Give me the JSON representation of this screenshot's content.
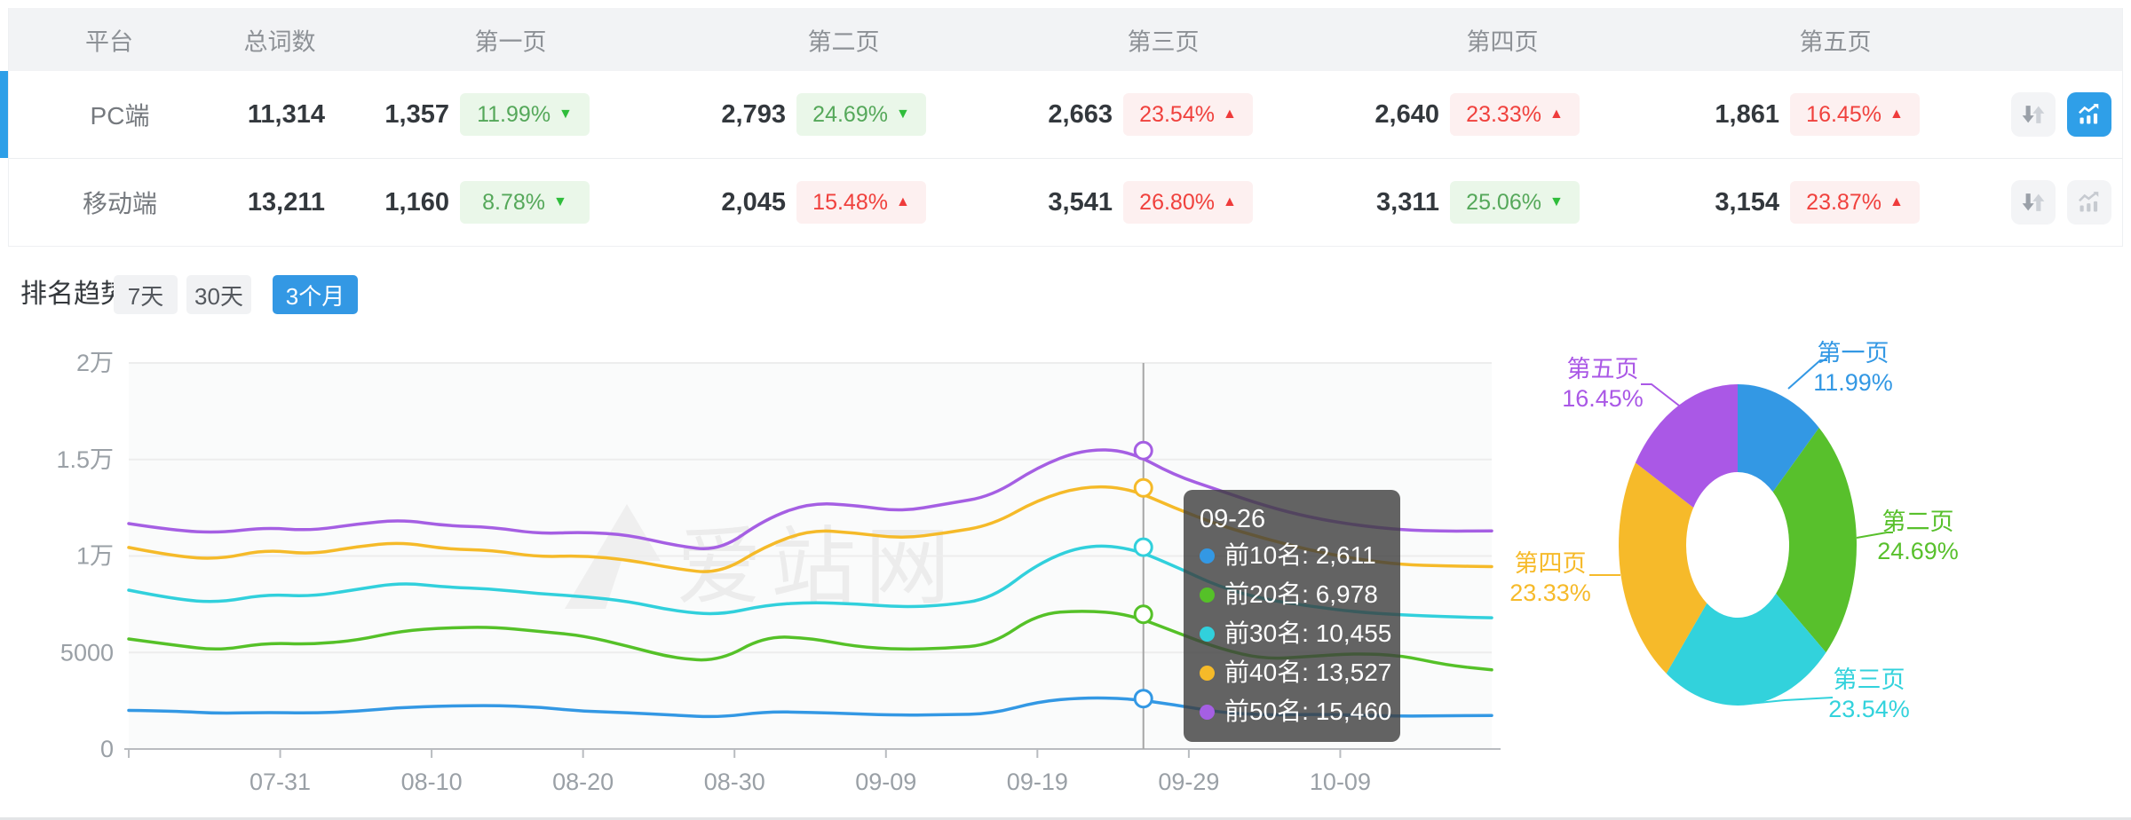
{
  "table": {
    "headers": [
      "平台",
      "总词数",
      "第一页",
      "第二页",
      "第三页",
      "第四页",
      "第五页"
    ],
    "rows": [
      {
        "platform": "PC端",
        "total": "11,314",
        "pages": [
          {
            "count": "1,357",
            "pct": "11.99%",
            "arrow": "▼",
            "trend": "down"
          },
          {
            "count": "2,793",
            "pct": "24.69%",
            "arrow": "▼",
            "trend": "down"
          },
          {
            "count": "2,663",
            "pct": "23.54%",
            "arrow": "▲",
            "trend": "up"
          },
          {
            "count": "2,640",
            "pct": "23.33%",
            "arrow": "▲",
            "trend": "up"
          },
          {
            "count": "1,861",
            "pct": "16.45%",
            "arrow": "▲",
            "trend": "up"
          }
        ],
        "chart_button_active": true
      },
      {
        "platform": "移动端",
        "total": "13,211",
        "pages": [
          {
            "count": "1,160",
            "pct": "8.78%",
            "arrow": "▼",
            "trend": "down"
          },
          {
            "count": "2,045",
            "pct": "15.48%",
            "arrow": "▲",
            "trend": "up"
          },
          {
            "count": "3,541",
            "pct": "26.80%",
            "arrow": "▲",
            "trend": "up"
          },
          {
            "count": "3,311",
            "pct": "25.06%",
            "arrow": "▼",
            "trend": "down"
          },
          {
            "count": "3,154",
            "pct": "23.87%",
            "arrow": "▲",
            "trend": "up"
          }
        ],
        "chart_button_active": false
      }
    ]
  },
  "trend": {
    "title": "排名趋势",
    "tabs": [
      {
        "label": "7天",
        "active": false
      },
      {
        "label": "30天",
        "active": false
      },
      {
        "label": "3个月",
        "active": true
      }
    ]
  },
  "colors": {
    "accent_blue": "#2f9fe8",
    "badge_green_text": "#55a85a",
    "badge_green_bg": "#eaf7e9",
    "badge_red_text": "#f0413d",
    "badge_red_bg": "#fdf0f0",
    "tooltip_bg": "rgba(61,61,61,0.8)"
  },
  "chart_data": [
    {
      "type": "line",
      "title": "排名趋势 (3个月)",
      "grid": true,
      "ylim": [
        0,
        20000
      ],
      "y_ticks": [
        "0",
        "5000",
        "1万",
        "1.5万",
        "2万"
      ],
      "x_labels": [
        "07-31",
        "08-10",
        "08-20",
        "08-30",
        "09-09",
        "09-19",
        "09-29",
        "10-09"
      ],
      "x_label_days": [
        10,
        20,
        30,
        40,
        50,
        60,
        70,
        80
      ],
      "x_dates": [
        "07-21",
        "07-24",
        "07-27",
        "07-30",
        "08-02",
        "08-05",
        "08-08",
        "08-11",
        "08-14",
        "08-17",
        "08-20",
        "08-23",
        "08-26",
        "08-29",
        "09-01",
        "09-04",
        "09-07",
        "09-10",
        "09-13",
        "09-16",
        "09-19",
        "09-22",
        "09-25",
        "09-28",
        "10-01",
        "10-04",
        "10-07",
        "10-10",
        "10-13",
        "10-16",
        "10-19"
      ],
      "series": [
        {
          "name": "前10名",
          "color": "#3398e4",
          "values": [
            2000,
            1970,
            1840,
            1900,
            1860,
            1950,
            2150,
            2230,
            2260,
            2180,
            1950,
            1880,
            1750,
            1640,
            1930,
            1900,
            1820,
            1750,
            1780,
            1820,
            2450,
            2660,
            2620,
            2300,
            1900,
            1750,
            1800,
            1760,
            1700,
            1720,
            1735
          ]
        },
        {
          "name": "前20名",
          "color": "#55c128",
          "values": [
            5700,
            5380,
            5100,
            5500,
            5420,
            5620,
            6120,
            6280,
            6320,
            6100,
            5880,
            5320,
            4700,
            4550,
            5840,
            5750,
            5300,
            5160,
            5220,
            5400,
            7000,
            7180,
            6990,
            6100,
            5200,
            4650,
            4800,
            4950,
            4850,
            4350,
            4100
          ]
        },
        {
          "name": "前30名",
          "color": "#31d0dc",
          "values": [
            8230,
            7760,
            7580,
            8020,
            7900,
            8260,
            8620,
            8380,
            8300,
            8050,
            7900,
            7650,
            7150,
            6940,
            7450,
            7600,
            7520,
            7350,
            7450,
            7800,
            9600,
            10550,
            10460,
            9500,
            8400,
            7750,
            7400,
            7100,
            6950,
            6850,
            6800
          ]
        },
        {
          "name": "前40名",
          "color": "#f5ba29",
          "values": [
            10440,
            9980,
            9830,
            10330,
            10080,
            10480,
            10720,
            10350,
            10300,
            9950,
            10020,
            9800,
            9350,
            9070,
            10500,
            11360,
            11200,
            10900,
            11200,
            11600,
            12900,
            13620,
            13530,
            12500,
            11600,
            10900,
            10300,
            9850,
            9550,
            9480,
            9450
          ]
        },
        {
          "name": "前50名",
          "color": "#a55fe3",
          "values": [
            11680,
            11320,
            11200,
            11480,
            11310,
            11650,
            11880,
            11560,
            11500,
            11150,
            11240,
            11100,
            10550,
            10250,
            11900,
            12760,
            12620,
            12300,
            12700,
            13100,
            14600,
            15520,
            15470,
            14200,
            13400,
            12600,
            12000,
            11600,
            11350,
            11280,
            11300
          ]
        }
      ],
      "marker": {
        "date": "09-26",
        "day": 67,
        "values": {
          "前10名": 2611,
          "前20名": 6978,
          "前30名": 10455,
          "前40名": 13527,
          "前50名": 15460
        }
      },
      "tooltip": {
        "title": "09-26",
        "items": [
          {
            "label": "前10名",
            "value": "2,611",
            "color": "#3398e4"
          },
          {
            "label": "前20名",
            "value": "6,978",
            "color": "#55c128"
          },
          {
            "label": "前30名",
            "value": "10,455",
            "color": "#31d0dc"
          },
          {
            "label": "前40名",
            "value": "13,527",
            "color": "#f5ba29"
          },
          {
            "label": "前50名",
            "value": "15,460",
            "color": "#a55fe3"
          }
        ]
      },
      "watermark": "爱站网",
      "legend_position": "none"
    },
    {
      "type": "pie",
      "donut": true,
      "labels": [
        "第一页",
        "第二页",
        "第三页",
        "第四页",
        "第五页"
      ],
      "values": [
        11.99,
        24.69,
        23.54,
        23.33,
        16.45
      ],
      "labels_pct": [
        "11.99%",
        "24.69%",
        "23.54%",
        "23.33%",
        "16.45%"
      ],
      "colors": [
        "#3398e4",
        "#58c02c",
        "#32d2dc",
        "#f6ba2a",
        "#aa58e6"
      ],
      "start_angle_deg": 0,
      "unit": "%"
    }
  ]
}
